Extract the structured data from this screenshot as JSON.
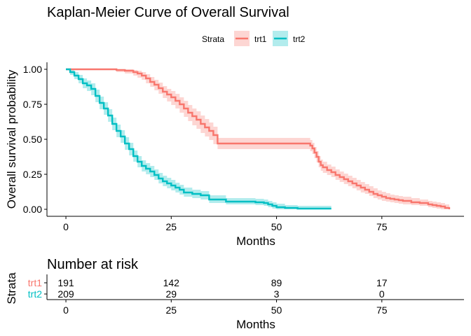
{
  "chart_data": [
    {
      "type": "line",
      "title": "Kaplan-Meier Curve of Overall Survival",
      "xlabel": "Months",
      "ylabel": "Overall survival probability",
      "xlim": [
        -4.5,
        94.5
      ],
      "ylim": [
        -0.05,
        1.05
      ],
      "x_ticks": [
        0,
        25,
        50,
        75
      ],
      "y_ticks": [
        0.0,
        0.25,
        0.5,
        0.75,
        1.0
      ],
      "y_tick_labels": [
        "0.00",
        "0.25",
        "0.50",
        "0.75",
        "1.00"
      ],
      "grid": false,
      "legend": {
        "title": "Strata",
        "position": "top"
      },
      "series": [
        {
          "name": "trt1",
          "color": "#f8766d",
          "fill": "#f8766d",
          "x": [
            0,
            10,
            12,
            14,
            16,
            17,
            18,
            19,
            20,
            21,
            22,
            23,
            24,
            25,
            26,
            27,
            28,
            29,
            30,
            31,
            32,
            33,
            34,
            35,
            36,
            57,
            58,
            58.5,
            59,
            59.5,
            60,
            60.5,
            61,
            62,
            63,
            64,
            65,
            66,
            67,
            68,
            69,
            70,
            71,
            72,
            73,
            74,
            75,
            76,
            77,
            78,
            79,
            80,
            82,
            84,
            86,
            87,
            88,
            89,
            90,
            91
          ],
          "y": [
            1.0,
            1.0,
            0.995,
            0.99,
            0.98,
            0.97,
            0.955,
            0.935,
            0.91,
            0.89,
            0.865,
            0.84,
            0.82,
            0.8,
            0.775,
            0.75,
            0.72,
            0.69,
            0.665,
            0.64,
            0.61,
            0.585,
            0.56,
            0.53,
            0.47,
            0.47,
            0.455,
            0.435,
            0.405,
            0.375,
            0.34,
            0.315,
            0.3,
            0.28,
            0.265,
            0.245,
            0.23,
            0.215,
            0.2,
            0.185,
            0.17,
            0.155,
            0.14,
            0.125,
            0.11,
            0.1,
            0.09,
            0.08,
            0.075,
            0.07,
            0.065,
            0.06,
            0.05,
            0.045,
            0.035,
            0.03,
            0.025,
            0.02,
            0.01,
            0.0
          ],
          "lower": [
            1.0,
            1.0,
            0.98,
            0.97,
            0.955,
            0.94,
            0.925,
            0.9,
            0.875,
            0.85,
            0.825,
            0.795,
            0.77,
            0.745,
            0.72,
            0.69,
            0.66,
            0.63,
            0.6,
            0.575,
            0.545,
            0.52,
            0.495,
            0.465,
            0.43,
            0.43,
            0.415,
            0.395,
            0.365,
            0.335,
            0.3,
            0.275,
            0.26,
            0.245,
            0.23,
            0.21,
            0.195,
            0.18,
            0.165,
            0.15,
            0.135,
            0.12,
            0.11,
            0.095,
            0.08,
            0.07,
            0.06,
            0.055,
            0.05,
            0.045,
            0.04,
            0.035,
            0.03,
            0.025,
            0.015,
            0.01,
            0.005,
            0.0,
            0.0,
            0.0
          ],
          "upper": [
            1.0,
            1.0,
            1.0,
            1.0,
            0.995,
            0.99,
            0.98,
            0.965,
            0.945,
            0.925,
            0.905,
            0.88,
            0.86,
            0.845,
            0.825,
            0.8,
            0.775,
            0.745,
            0.72,
            0.7,
            0.67,
            0.645,
            0.62,
            0.59,
            0.51,
            0.51,
            0.495,
            0.475,
            0.445,
            0.415,
            0.38,
            0.355,
            0.34,
            0.32,
            0.305,
            0.285,
            0.27,
            0.255,
            0.24,
            0.225,
            0.21,
            0.195,
            0.18,
            0.165,
            0.15,
            0.135,
            0.125,
            0.115,
            0.105,
            0.1,
            0.095,
            0.09,
            0.08,
            0.07,
            0.06,
            0.055,
            0.05,
            0.045,
            0.035,
            0.02
          ]
        },
        {
          "name": "trt2",
          "color": "#00bfc4",
          "fill": "#00bfc4",
          "x": [
            0,
            1,
            2,
            3,
            4,
            5,
            6,
            7,
            8,
            9,
            10,
            11,
            12,
            13,
            14,
            15,
            16,
            17,
            18,
            19,
            20,
            21,
            22,
            23,
            24,
            25,
            26,
            27,
            28,
            30,
            32,
            34,
            38,
            42,
            45,
            47,
            48,
            49,
            50,
            52,
            55,
            63
          ],
          "y": [
            1.0,
            0.98,
            0.955,
            0.93,
            0.9,
            0.885,
            0.86,
            0.81,
            0.76,
            0.72,
            0.67,
            0.61,
            0.56,
            0.52,
            0.47,
            0.43,
            0.38,
            0.34,
            0.31,
            0.29,
            0.27,
            0.245,
            0.22,
            0.2,
            0.185,
            0.17,
            0.155,
            0.14,
            0.12,
            0.11,
            0.1,
            0.07,
            0.055,
            0.055,
            0.05,
            0.045,
            0.035,
            0.025,
            0.015,
            0.01,
            0.005,
            0.005
          ],
          "lower": [
            1.0,
            0.96,
            0.93,
            0.9,
            0.865,
            0.845,
            0.815,
            0.765,
            0.715,
            0.675,
            0.625,
            0.565,
            0.515,
            0.475,
            0.425,
            0.385,
            0.34,
            0.3,
            0.27,
            0.25,
            0.23,
            0.21,
            0.185,
            0.165,
            0.15,
            0.135,
            0.12,
            0.105,
            0.09,
            0.08,
            0.07,
            0.045,
            0.035,
            0.035,
            0.03,
            0.025,
            0.015,
            0.005,
            0.0,
            0.0,
            0.0,
            0.0
          ],
          "upper": [
            1.0,
            1.0,
            0.98,
            0.96,
            0.935,
            0.92,
            0.9,
            0.855,
            0.805,
            0.765,
            0.715,
            0.655,
            0.605,
            0.565,
            0.515,
            0.475,
            0.42,
            0.38,
            0.35,
            0.33,
            0.31,
            0.285,
            0.26,
            0.24,
            0.225,
            0.21,
            0.19,
            0.175,
            0.155,
            0.14,
            0.13,
            0.1,
            0.08,
            0.08,
            0.075,
            0.07,
            0.06,
            0.05,
            0.04,
            0.03,
            0.025,
            0.025
          ]
        }
      ]
    },
    {
      "type": "table",
      "title": "Number at risk",
      "xlabel": "Months",
      "ylabel": "Strata",
      "x_ticks": [
        0,
        25,
        50,
        75
      ],
      "rows": [
        {
          "name": "trt1",
          "color": "#f8766d",
          "values": [
            191,
            142,
            89,
            17
          ]
        },
        {
          "name": "trt2",
          "color": "#00bfc4",
          "values": [
            209,
            29,
            3,
            0
          ]
        }
      ]
    }
  ]
}
